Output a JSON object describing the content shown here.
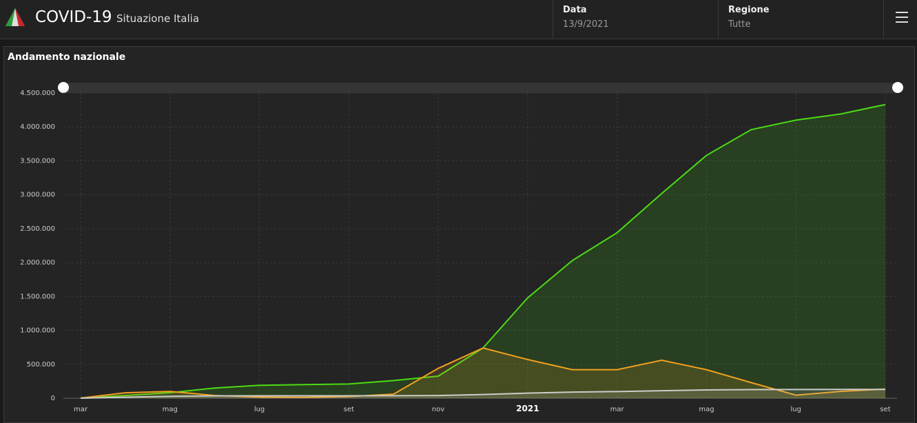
{
  "header": {
    "title": "COVID-19",
    "subtitle": "Situazione Italia",
    "fields": [
      {
        "label": "Data",
        "value": "13/9/2021"
      },
      {
        "label": "Regione",
        "value": "Tutte"
      }
    ]
  },
  "chart_data": {
    "type": "area",
    "title": "Andamento nazionale",
    "categories": [
      "mar",
      null,
      "mag",
      null,
      "lug",
      null,
      "set",
      null,
      "nov",
      null,
      "2021",
      null,
      "mar",
      null,
      "mag",
      null,
      "lug",
      null,
      "set"
    ],
    "series": [
      {
        "color": "#4cdc14",
        "values": [
          1000,
          40000,
          81000,
          150000,
          190000,
          200000,
          210000,
          260000,
          325000,
          740000,
          1480000,
          2030000,
          2440000,
          3020000,
          3580000,
          3960000,
          4100000,
          4190000,
          4330000
        ]
      },
      {
        "color": "#f0a020",
        "values": [
          2000,
          80000,
          100000,
          40000,
          16000,
          12000,
          25000,
          60000,
          440000,
          740000,
          570000,
          420000,
          420000,
          560000,
          420000,
          230000,
          45000,
          100000,
          135000
        ]
      },
      {
        "color": "#cccccc",
        "values": [
          0,
          15000,
          28000,
          34000,
          35000,
          35000,
          36000,
          37000,
          39000,
          55000,
          75000,
          90000,
          98000,
          110000,
          122000,
          127000,
          128000,
          129000,
          130000
        ]
      }
    ],
    "ylim": [
      0,
      4500000
    ],
    "yticks": [
      0,
      {
        "value": 500000,
        "label": "500.000"
      },
      {
        "value": 1000000,
        "label": "1.000.000"
      },
      {
        "value": 1500000,
        "label": "1.500.000"
      },
      {
        "value": 2000000,
        "label": "2.000.000"
      },
      {
        "value": 2500000,
        "label": "2.500.000"
      },
      {
        "value": 3000000,
        "label": "3.000.000"
      },
      {
        "value": 3500000,
        "label": "3.500.000"
      },
      {
        "value": 4000000,
        "label": "4.000.000"
      },
      {
        "value": 4500000,
        "label": "4.500.000"
      }
    ],
    "grid": true
  }
}
